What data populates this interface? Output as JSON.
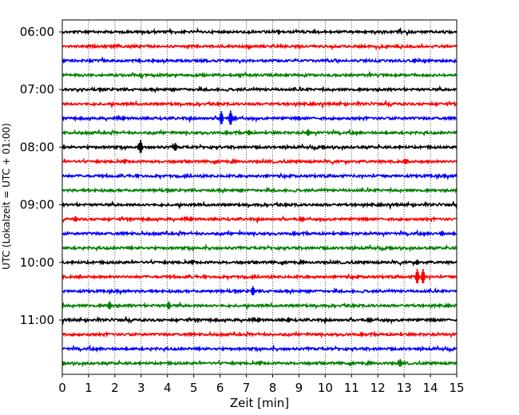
{
  "chart_data": {
    "type": "line",
    "xlabel": "Zeit  [min]",
    "ylabel": "UTC (Lokalzeit = UTC + 01:00)",
    "xlim": [
      0,
      15
    ],
    "x_ticks": [
      0,
      1,
      2,
      3,
      4,
      5,
      6,
      7,
      8,
      9,
      10,
      11,
      12,
      13,
      14,
      15
    ],
    "x_tick_labels": [
      "0",
      "1",
      "2",
      "3",
      "4",
      "5",
      "6",
      "7",
      "8",
      "9",
      "10",
      "11",
      "12",
      "13",
      "14",
      "15"
    ],
    "y_tick_labels": [
      "06:00",
      "07:00",
      "08:00",
      "09:00",
      "10:00",
      "11:00"
    ],
    "row_colors": [
      "#000000",
      "#ff0000",
      "#0000ff",
      "#008000"
    ],
    "grid": "vertical dotted",
    "rows": [
      {
        "start": "06:00",
        "events": []
      },
      {
        "start": "06:15",
        "events": []
      },
      {
        "start": "06:30",
        "events": []
      },
      {
        "start": "06:45",
        "events": []
      },
      {
        "start": "07:00",
        "events": []
      },
      {
        "start": "07:15",
        "events": []
      },
      {
        "start": "07:30",
        "events": [
          {
            "t": 6.05,
            "amp": 0.5
          },
          {
            "t": 6.4,
            "amp": 0.55
          }
        ]
      },
      {
        "start": "07:45",
        "events": [
          {
            "t": 7.1,
            "amp": 0.2
          },
          {
            "t": 9.35,
            "amp": 0.25
          }
        ]
      },
      {
        "start": "08:00",
        "events": [
          {
            "t": 2.98,
            "amp": 0.5
          },
          {
            "t": 4.3,
            "amp": 0.3
          }
        ]
      },
      {
        "start": "08:15",
        "events": [
          {
            "t": 13.05,
            "amp": 0.2
          }
        ]
      },
      {
        "start": "08:30",
        "events": []
      },
      {
        "start": "08:45",
        "events": []
      },
      {
        "start": "09:00",
        "events": []
      },
      {
        "start": "09:15",
        "events": [
          {
            "t": 0.5,
            "amp": 0.2
          }
        ]
      },
      {
        "start": "09:30",
        "events": [
          {
            "t": 14.45,
            "amp": 0.2
          }
        ]
      },
      {
        "start": "09:45",
        "events": []
      },
      {
        "start": "10:00",
        "events": [
          {
            "t": 13.5,
            "amp": 0.2
          }
        ]
      },
      {
        "start": "10:15",
        "events": [
          {
            "t": 13.5,
            "amp": 0.55
          },
          {
            "t": 13.72,
            "amp": 0.55
          }
        ]
      },
      {
        "start": "10:30",
        "events": [
          {
            "t": 7.25,
            "amp": 0.35
          }
        ]
      },
      {
        "start": "10:45",
        "events": [
          {
            "t": 1.8,
            "amp": 0.3
          },
          {
            "t": 4.05,
            "amp": 0.3
          }
        ]
      },
      {
        "start": "11:00",
        "events": [
          {
            "t": 8.6,
            "amp": 0.2
          }
        ]
      },
      {
        "start": "11:15",
        "events": []
      },
      {
        "start": "11:30",
        "events": []
      },
      {
        "start": "11:45",
        "events": [
          {
            "t": 12.85,
            "amp": 0.3
          }
        ]
      }
    ]
  }
}
